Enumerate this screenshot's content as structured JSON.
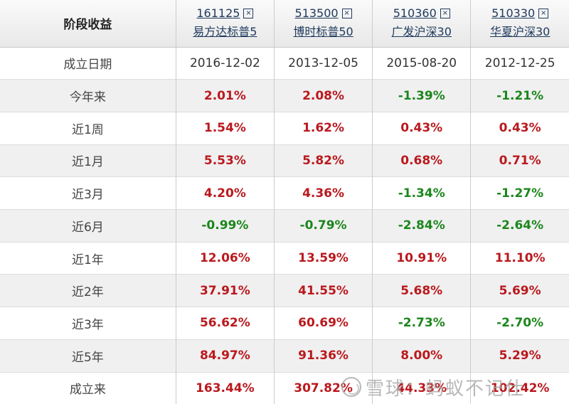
{
  "colors": {
    "positive": "#ba191e",
    "negative": "#1c861c",
    "link": "#203b5e"
  },
  "table": {
    "corner_label": "阶段收益",
    "close_icon": "×",
    "funds": [
      {
        "code": "161125",
        "name": "易方达标普5"
      },
      {
        "code": "513500",
        "name": "博时标普50"
      },
      {
        "code": "510360",
        "name": "广发沪深30"
      },
      {
        "code": "510330",
        "name": "华夏沪深30"
      }
    ],
    "rows": [
      {
        "label": "成立日期",
        "type": "date",
        "values": [
          "2016-12-02",
          "2013-12-05",
          "2015-08-20",
          "2012-12-25"
        ]
      },
      {
        "label": "今年来",
        "type": "return",
        "values": [
          "2.01%",
          "2.08%",
          "-1.39%",
          "-1.21%"
        ]
      },
      {
        "label": "近1周",
        "type": "return",
        "values": [
          "1.54%",
          "1.62%",
          "0.43%",
          "0.43%"
        ]
      },
      {
        "label": "近1月",
        "type": "return",
        "values": [
          "5.53%",
          "5.82%",
          "0.68%",
          "0.71%"
        ]
      },
      {
        "label": "近3月",
        "type": "return",
        "values": [
          "4.20%",
          "4.36%",
          "-1.34%",
          "-1.27%"
        ]
      },
      {
        "label": "近6月",
        "type": "return",
        "values": [
          "-0.99%",
          "-0.79%",
          "-2.84%",
          "-2.64%"
        ]
      },
      {
        "label": "近1年",
        "type": "return",
        "values": [
          "12.06%",
          "13.59%",
          "10.91%",
          "11.10%"
        ]
      },
      {
        "label": "近2年",
        "type": "return",
        "values": [
          "37.91%",
          "41.55%",
          "5.68%",
          "5.69%"
        ]
      },
      {
        "label": "近3年",
        "type": "return",
        "values": [
          "56.62%",
          "60.69%",
          "-2.73%",
          "-2.70%"
        ]
      },
      {
        "label": "近5年",
        "type": "return",
        "values": [
          "84.97%",
          "91.36%",
          "8.00%",
          "5.29%"
        ]
      },
      {
        "label": "成立来",
        "type": "return",
        "values": [
          "163.44%",
          "307.82%",
          "44.33%",
          "102.42%"
        ]
      }
    ]
  },
  "watermark": {
    "text": "雪球：蚂蚁不记仕"
  }
}
